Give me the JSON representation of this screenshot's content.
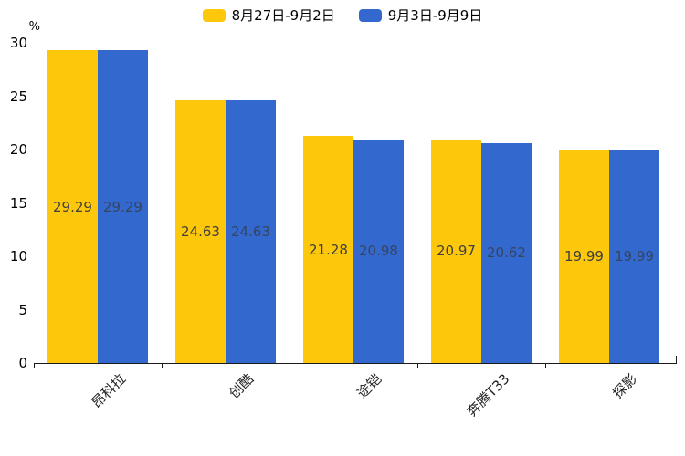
{
  "chart_data": {
    "type": "bar",
    "title": "",
    "unit_label": "%",
    "categories": [
      "昂科拉",
      "创酷",
      "途铠",
      "奔腾T33",
      "探影"
    ],
    "series": [
      {
        "name": "8月27日-9月2日",
        "color": "#FDC70C",
        "value_label_color": "#3f3f3f",
        "values": [
          29.29,
          24.63,
          21.28,
          20.97,
          19.99
        ]
      },
      {
        "name": "9月3日-9月9日",
        "color": "#3368CE",
        "value_label_color": "#36455f",
        "values": [
          29.29,
          24.63,
          20.98,
          20.62,
          19.99
        ]
      }
    ],
    "ylim": [
      0,
      30
    ],
    "yticks": [
      0,
      5,
      10,
      15,
      20,
      25,
      30
    ],
    "legend_position": "top",
    "grid": false,
    "value_label_position": "inside-middle"
  }
}
